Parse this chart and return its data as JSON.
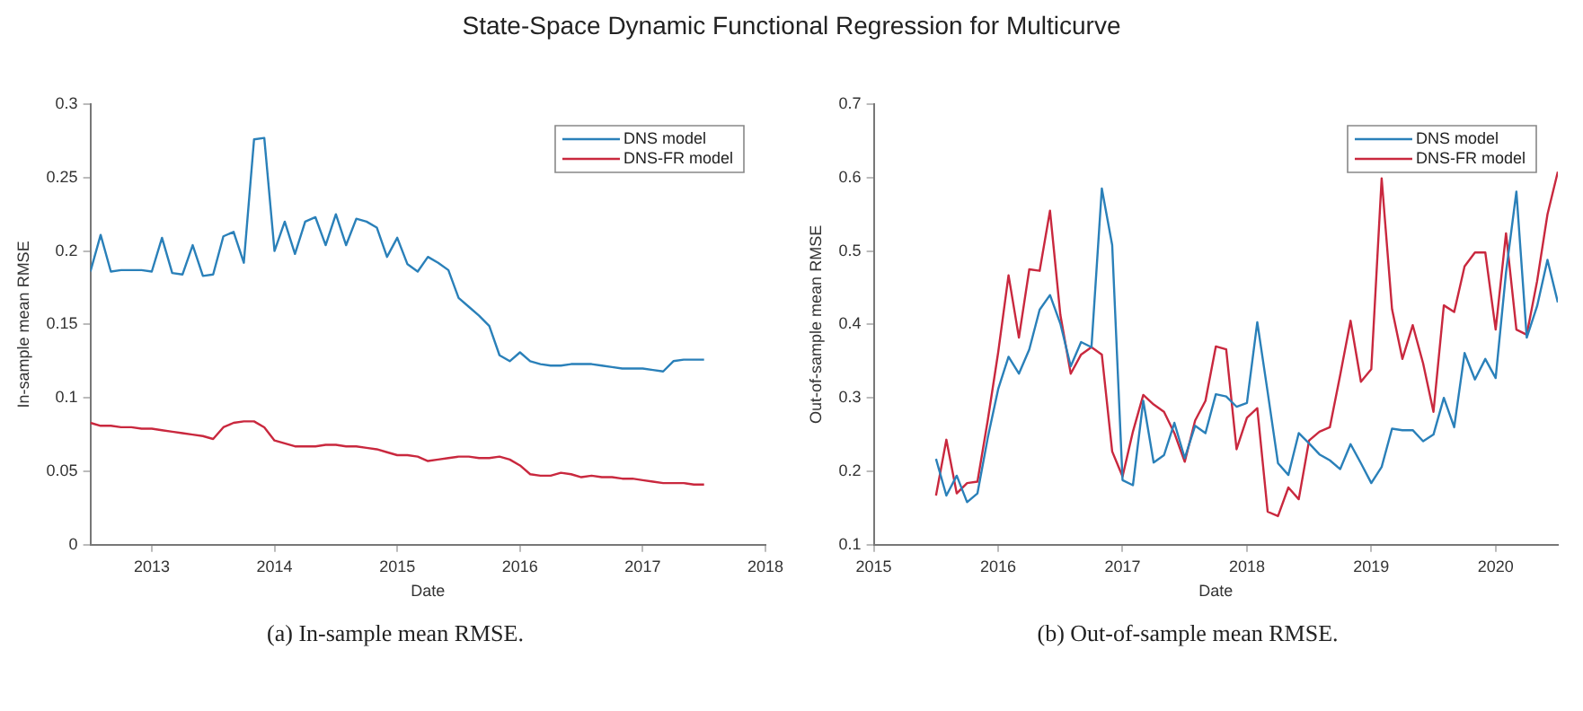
{
  "chart_data": [
    {
      "type": "line",
      "title": "State-Space Dynamic Functional Regression for Multicurve",
      "xlabel": "Date",
      "ylabel": "In-sample mean RMSE",
      "annotations": [
        "(a) In-sample mean RMSE."
      ],
      "x": [
        "2012-07",
        "2012-08",
        "2012-09",
        "2012-10",
        "2012-11",
        "2012-12",
        "2013-01",
        "2013-02",
        "2013-03",
        "2013-04",
        "2013-05",
        "2013-06",
        "2013-07",
        "2013-08",
        "2013-09",
        "2013-10",
        "2013-11",
        "2013-12",
        "2014-01",
        "2014-02",
        "2014-03",
        "2014-04",
        "2014-05",
        "2014-06",
        "2014-07",
        "2014-08",
        "2014-09",
        "2014-10",
        "2014-11",
        "2014-12",
        "2015-01",
        "2015-02",
        "2015-03",
        "2015-04",
        "2015-05",
        "2015-06",
        "2015-07",
        "2015-08",
        "2015-09",
        "2015-10",
        "2015-11",
        "2015-12",
        "2016-01",
        "2016-02",
        "2016-03",
        "2016-04",
        "2016-05",
        "2016-06",
        "2016-07",
        "2016-08",
        "2016-09",
        "2016-10",
        "2016-11",
        "2016-12",
        "2017-01",
        "2017-02",
        "2017-03",
        "2017-04",
        "2017-05",
        "2017-06",
        "2017-07"
      ],
      "series": [
        {
          "name": "DNS model",
          "color": "#2a80b9",
          "values": [
            0.186,
            0.211,
            0.186,
            0.187,
            0.187,
            0.187,
            0.186,
            0.209,
            0.185,
            0.184,
            0.204,
            0.183,
            0.184,
            0.21,
            0.213,
            0.192,
            0.276,
            0.277,
            0.2,
            0.22,
            0.198,
            0.22,
            0.223,
            0.204,
            0.225,
            0.204,
            0.222,
            0.22,
            0.216,
            0.196,
            0.209,
            0.191,
            0.186,
            0.196,
            0.192,
            0.187,
            0.168,
            0.162,
            0.156,
            0.149,
            0.129,
            0.125,
            0.131,
            0.125,
            0.123,
            0.122,
            0.122,
            0.123,
            0.123,
            0.123,
            0.122,
            0.121,
            0.12,
            0.12,
            0.12,
            0.119,
            0.118,
            0.125,
            0.126,
            0.126,
            0.126
          ]
        },
        {
          "name": "DNS-FR model",
          "color": "#c9283e",
          "values": [
            0.083,
            0.081,
            0.081,
            0.08,
            0.08,
            0.079,
            0.079,
            0.078,
            0.077,
            0.076,
            0.075,
            0.074,
            0.072,
            0.08,
            0.083,
            0.084,
            0.084,
            0.08,
            0.071,
            0.069,
            0.067,
            0.067,
            0.067,
            0.068,
            0.068,
            0.067,
            0.067,
            0.066,
            0.065,
            0.063,
            0.061,
            0.061,
            0.06,
            0.057,
            0.058,
            0.059,
            0.06,
            0.06,
            0.059,
            0.059,
            0.06,
            0.058,
            0.054,
            0.048,
            0.047,
            0.047,
            0.049,
            0.048,
            0.046,
            0.047,
            0.046,
            0.046,
            0.045,
            0.045,
            0.044,
            0.043,
            0.042,
            0.042,
            0.042,
            0.041,
            0.041
          ]
        }
      ],
      "xlim": [
        "2012-07",
        "2018"
      ],
      "xticks": [
        "2013",
        "2014",
        "2015",
        "2016",
        "2017",
        "2018"
      ],
      "ylim": [
        0,
        0.3
      ],
      "yticks": [
        0,
        0.05,
        0.1,
        0.15,
        0.2,
        0.25,
        0.3
      ],
      "grid": false,
      "legend": "top right",
      "marker": "none",
      "line_style": "solid"
    },
    {
      "type": "line",
      "xlabel": "Date",
      "ylabel": "Out-of-sample mean RMSE",
      "annotations": [
        "(b) Out-of-sample mean RMSE."
      ],
      "x": [
        "2015-07",
        "2015-08",
        "2015-09",
        "2015-10",
        "2015-11",
        "2015-12",
        "2016-01",
        "2016-02",
        "2016-03",
        "2016-04",
        "2016-05",
        "2016-06",
        "2016-07",
        "2016-08",
        "2016-09",
        "2016-10",
        "2016-11",
        "2016-12",
        "2017-01",
        "2017-02",
        "2017-03",
        "2017-04",
        "2017-05",
        "2017-06",
        "2017-07",
        "2017-08",
        "2017-09",
        "2017-10",
        "2017-11",
        "2017-12",
        "2018-01",
        "2018-02",
        "2018-03",
        "2018-04",
        "2018-05",
        "2018-06",
        "2018-07",
        "2018-08",
        "2018-09",
        "2018-10",
        "2018-11",
        "2018-12",
        "2019-01",
        "2019-02",
        "2019-03",
        "2019-04",
        "2019-05",
        "2019-06",
        "2019-07",
        "2019-08",
        "2019-09",
        "2019-10",
        "2019-11",
        "2019-12",
        "2020-01",
        "2020-02",
        "2020-03",
        "2020-04",
        "2020-05",
        "2020-06",
        "2020-07"
      ],
      "series": [
        {
          "name": "DNS model",
          "color": "#2a80b9",
          "values": [
            0.217,
            0.167,
            0.194,
            0.158,
            0.17,
            0.246,
            0.312,
            0.356,
            0.333,
            0.366,
            0.42,
            0.44,
            0.401,
            0.343,
            0.376,
            0.369,
            0.585,
            0.508,
            0.188,
            0.181,
            0.296,
            0.212,
            0.222,
            0.266,
            0.218,
            0.262,
            0.252,
            0.305,
            0.302,
            0.288,
            0.293,
            0.403,
            0.308,
            0.211,
            0.195,
            0.252,
            0.238,
            0.223,
            0.215,
            0.203,
            0.237,
            0.211,
            0.184,
            0.206,
            0.258,
            0.256,
            0.256,
            0.241,
            0.25,
            0.3,
            0.26,
            0.361,
            0.325,
            0.353,
            0.327,
            0.471,
            0.581,
            0.382,
            0.425,
            0.488,
            0.43
          ]
        },
        {
          "name": "DNS-FR model",
          "color": "#c9283e",
          "values": [
            0.167,
            0.243,
            0.17,
            0.184,
            0.186,
            0.27,
            0.362,
            0.467,
            0.382,
            0.475,
            0.473,
            0.555,
            0.413,
            0.333,
            0.359,
            0.369,
            0.359,
            0.227,
            0.193,
            0.254,
            0.304,
            0.291,
            0.281,
            0.252,
            0.213,
            0.269,
            0.296,
            0.37,
            0.366,
            0.23,
            0.273,
            0.286,
            0.145,
            0.139,
            0.178,
            0.162,
            0.242,
            0.254,
            0.26,
            0.331,
            0.405,
            0.322,
            0.339,
            0.599,
            0.421,
            0.353,
            0.399,
            0.347,
            0.281,
            0.426,
            0.417,
            0.479,
            0.498,
            0.498,
            0.393,
            0.524,
            0.393,
            0.386,
            0.459,
            0.55,
            0.608
          ]
        }
      ],
      "xlim": [
        "2015",
        "2020-07"
      ],
      "xticks": [
        "2015",
        "2016",
        "2017",
        "2018",
        "2019",
        "2020"
      ],
      "ylim": [
        0.1,
        0.7
      ],
      "yticks": [
        0.1,
        0.2,
        0.3,
        0.4,
        0.5,
        0.6,
        0.7
      ],
      "grid": false,
      "legend": "top right",
      "marker": "none",
      "line_style": "solid"
    }
  ]
}
